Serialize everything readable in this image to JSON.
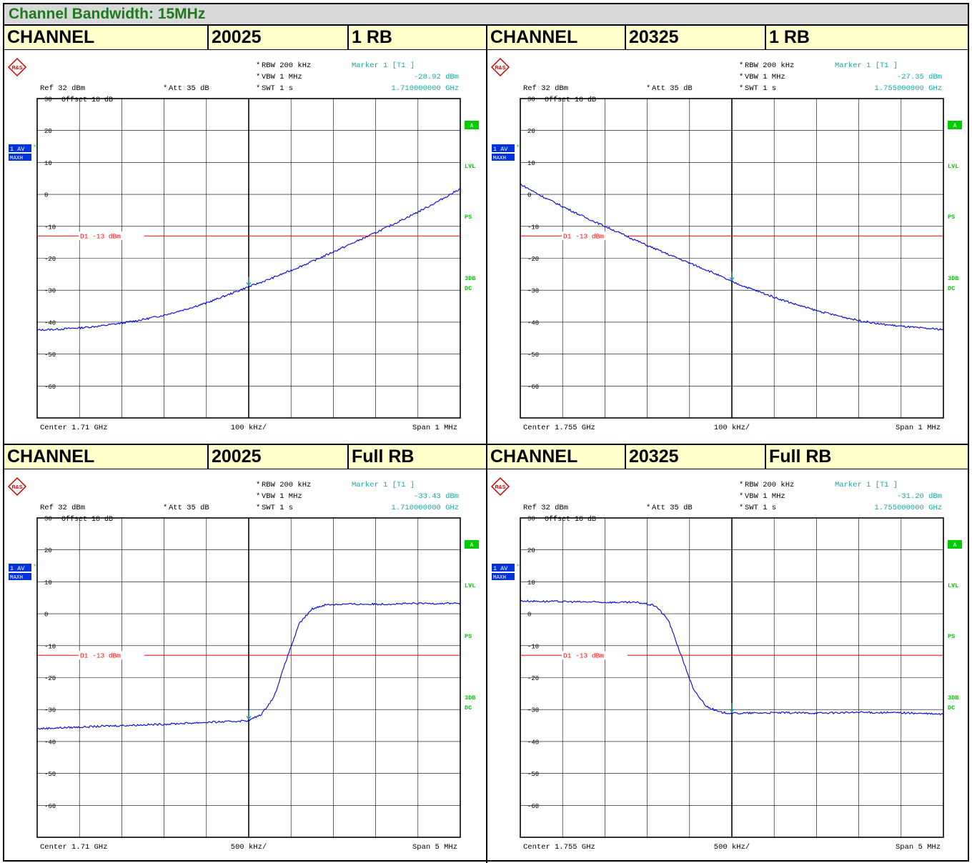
{
  "page_title": "Channel Bandwidth: 15MHz",
  "colors": {
    "title_green": "#1d7a1d",
    "header_bg": "#ffffcc",
    "trace": "#0000e0",
    "limit": "#ff0000",
    "marker_text": "#1ba5a5",
    "status_green": "#00cc00",
    "badge_blue": "#0033dd"
  },
  "panels": [
    {
      "header": {
        "label": "CHANNEL",
        "channel": "20025",
        "rb": "1 RB"
      },
      "settings": {
        "rbw": "RBW  200 kHz",
        "vbw": "VBW  1 MHz",
        "swt": "SWT  1 s",
        "ref": "Ref   32 dBm",
        "att": "Att   35 dB",
        "offset": "Offset   18 dB",
        "star": "*"
      },
      "marker": {
        "title": "Marker 1 [T1 ]",
        "level": "-28.92 dBm",
        "freq": "1.710000000 GHz"
      },
      "trace_badge": {
        "line1": "1 AV",
        "line2": "MAXH"
      },
      "status": {
        "a": "A",
        "lvl": "LVL",
        "ps": "PS",
        "db3": "3DB",
        "dc": "DC"
      },
      "footer": {
        "center": "Center  1.71 GHz",
        "div": "100 kHz/",
        "span": "Span  1 MHz"
      },
      "limit_label": "D1  -13 dBm",
      "rs_logo": "R&S"
    },
    {
      "header": {
        "label": "CHANNEL",
        "channel": "20325",
        "rb": "1 RB"
      },
      "settings": {
        "rbw": "RBW  200 kHz",
        "vbw": "VBW  1 MHz",
        "swt": "SWT  1 s",
        "ref": "Ref   32 dBm",
        "att": "Att   35 dB",
        "offset": "Offset   18 dB",
        "star": "*"
      },
      "marker": {
        "title": "Marker 1 [T1 ]",
        "level": "-27.35 dBm",
        "freq": "1.755000000 GHz"
      },
      "trace_badge": {
        "line1": "1 AV",
        "line2": "MAXH"
      },
      "status": {
        "a": "A",
        "lvl": "LVL",
        "ps": "PS",
        "db3": "3DB",
        "dc": "DC"
      },
      "footer": {
        "center": "Center  1.755 GHz",
        "div": "100 kHz/",
        "span": "Span  1 MHz"
      },
      "limit_label": "D1  -13 dBm",
      "rs_logo": "R&S"
    },
    {
      "header": {
        "label": "CHANNEL",
        "channel": "20025",
        "rb": "Full RB"
      },
      "settings": {
        "rbw": "RBW  200 kHz",
        "vbw": "VBW  1 MHz",
        "swt": "SWT  1 s",
        "ref": "Ref   32 dBm",
        "att": "Att   35 dB",
        "offset": "Offset   18 dB",
        "star": "*"
      },
      "marker": {
        "title": "Marker 1 [T1 ]",
        "level": "-33.43 dBm",
        "freq": "1.710000000 GHz"
      },
      "trace_badge": {
        "line1": "1 AV",
        "line2": "MAXH"
      },
      "status": {
        "a": "A",
        "lvl": "LVL",
        "ps": "PS",
        "db3": "3DB",
        "dc": "DC"
      },
      "footer": {
        "center": "Center  1.71 GHz",
        "div": "500 kHz/",
        "span": "Span  5 MHz"
      },
      "limit_label": "D1  -13 dBm",
      "rs_logo": "R&S"
    },
    {
      "header": {
        "label": "CHANNEL",
        "channel": "20325",
        "rb": "Full RB"
      },
      "settings": {
        "rbw": "RBW  200 kHz",
        "vbw": "VBW  1 MHz",
        "swt": "SWT  1 s",
        "ref": "Ref   32 dBm",
        "att": "Att   35 dB",
        "offset": "Offset   18 dB",
        "star": "*"
      },
      "marker": {
        "title": "Marker 1 [T1 ]",
        "level": "-31.20 dBm",
        "freq": "1.755000000 GHz"
      },
      "trace_badge": {
        "line1": "1 AV",
        "line2": "MAXH"
      },
      "status": {
        "a": "A",
        "lvl": "LVL",
        "ps": "PS",
        "db3": "3DB",
        "dc": "DC"
      },
      "footer": {
        "center": "Center  1.755 GHz",
        "div": "500 kHz/",
        "span": "Span  5 MHz"
      },
      "limit_label": "D1  -13 dBm",
      "rs_logo": "R&S"
    }
  ],
  "chart_data": [
    {
      "type": "line",
      "x_unit": "MHz offset from center",
      "x": [
        -0.5,
        -0.45,
        -0.4,
        -0.35,
        -0.3,
        -0.25,
        -0.2,
        -0.15,
        -0.1,
        -0.05,
        0.0,
        0.05,
        0.1,
        0.15,
        0.2,
        0.25,
        0.3,
        0.35,
        0.4,
        0.45,
        0.5
      ],
      "series": [
        {
          "values": [
            -42.5,
            -42.2,
            -41.8,
            -41.2,
            -40.3,
            -39.2,
            -37.8,
            -36.0,
            -34.0,
            -31.5,
            -28.92,
            -26.5,
            -23.8,
            -21.0,
            -18.0,
            -15.0,
            -12.0,
            -8.8,
            -5.5,
            -2.0,
            1.8
          ]
        }
      ],
      "yticks": [
        30,
        20,
        10,
        0,
        -10,
        -20,
        -30,
        -40,
        -50,
        -60
      ],
      "ylim": [
        -70,
        30
      ],
      "xlim": [
        -0.5,
        0.5
      ],
      "limit_line": -13,
      "marker": {
        "x": 0.0,
        "y": -28.92
      },
      "grid": true
    },
    {
      "type": "line",
      "x_unit": "MHz offset from center",
      "x": [
        -0.5,
        -0.45,
        -0.4,
        -0.35,
        -0.3,
        -0.25,
        -0.2,
        -0.15,
        -0.1,
        -0.05,
        0.0,
        0.05,
        0.1,
        0.15,
        0.2,
        0.25,
        0.3,
        0.35,
        0.4,
        0.45,
        0.5
      ],
      "series": [
        {
          "values": [
            3.2,
            -0.5,
            -3.8,
            -7.0,
            -10.0,
            -13.0,
            -16.0,
            -18.8,
            -21.5,
            -24.2,
            -27.35,
            -29.8,
            -32.2,
            -34.4,
            -36.4,
            -38.0,
            -39.5,
            -40.6,
            -41.3,
            -41.9,
            -42.3
          ]
        }
      ],
      "yticks": [
        30,
        20,
        10,
        0,
        -10,
        -20,
        -30,
        -40,
        -50,
        -60
      ],
      "ylim": [
        -70,
        30
      ],
      "xlim": [
        -0.5,
        0.5
      ],
      "limit_line": -13,
      "marker": {
        "x": 0.0,
        "y": -27.35
      },
      "grid": true
    },
    {
      "type": "line",
      "x_unit": "MHz offset from center",
      "x": [
        -2.5,
        -2.0,
        -1.5,
        -1.0,
        -0.5,
        -0.25,
        0.0,
        0.15,
        0.3,
        0.45,
        0.6,
        0.75,
        0.9,
        1.1,
        1.5,
        2.0,
        2.5
      ],
      "series": [
        {
          "values": [
            -36.0,
            -35.5,
            -35.0,
            -34.6,
            -34.0,
            -33.8,
            -33.43,
            -31.5,
            -26.0,
            -14.0,
            -3.0,
            1.5,
            2.8,
            3.0,
            3.0,
            3.2,
            3.3
          ]
        }
      ],
      "yticks": [
        30,
        20,
        10,
        0,
        -10,
        -20,
        -30,
        -40,
        -50,
        -60
      ],
      "ylim": [
        -70,
        30
      ],
      "xlim": [
        -2.5,
        2.5
      ],
      "limit_line": -13,
      "marker": {
        "x": 0.0,
        "y": -33.43
      },
      "grid": true
    },
    {
      "type": "line",
      "x_unit": "MHz offset from center",
      "x": [
        -2.5,
        -2.0,
        -1.5,
        -1.1,
        -0.9,
        -0.75,
        -0.6,
        -0.45,
        -0.3,
        -0.15,
        0.0,
        0.5,
        1.0,
        1.5,
        2.0,
        2.5
      ],
      "series": [
        {
          "values": [
            4.0,
            3.8,
            3.6,
            3.5,
            2.5,
            -2.0,
            -13.0,
            -24.0,
            -29.0,
            -30.8,
            -31.2,
            -31.0,
            -31.1,
            -30.9,
            -31.0,
            -31.5
          ]
        }
      ],
      "yticks": [
        30,
        20,
        10,
        0,
        -10,
        -20,
        -30,
        -40,
        -50,
        -60
      ],
      "ylim": [
        -70,
        30
      ],
      "xlim": [
        -2.5,
        2.5
      ],
      "limit_line": -13,
      "marker": {
        "x": 0.0,
        "y": -31.2
      },
      "grid": true
    }
  ]
}
